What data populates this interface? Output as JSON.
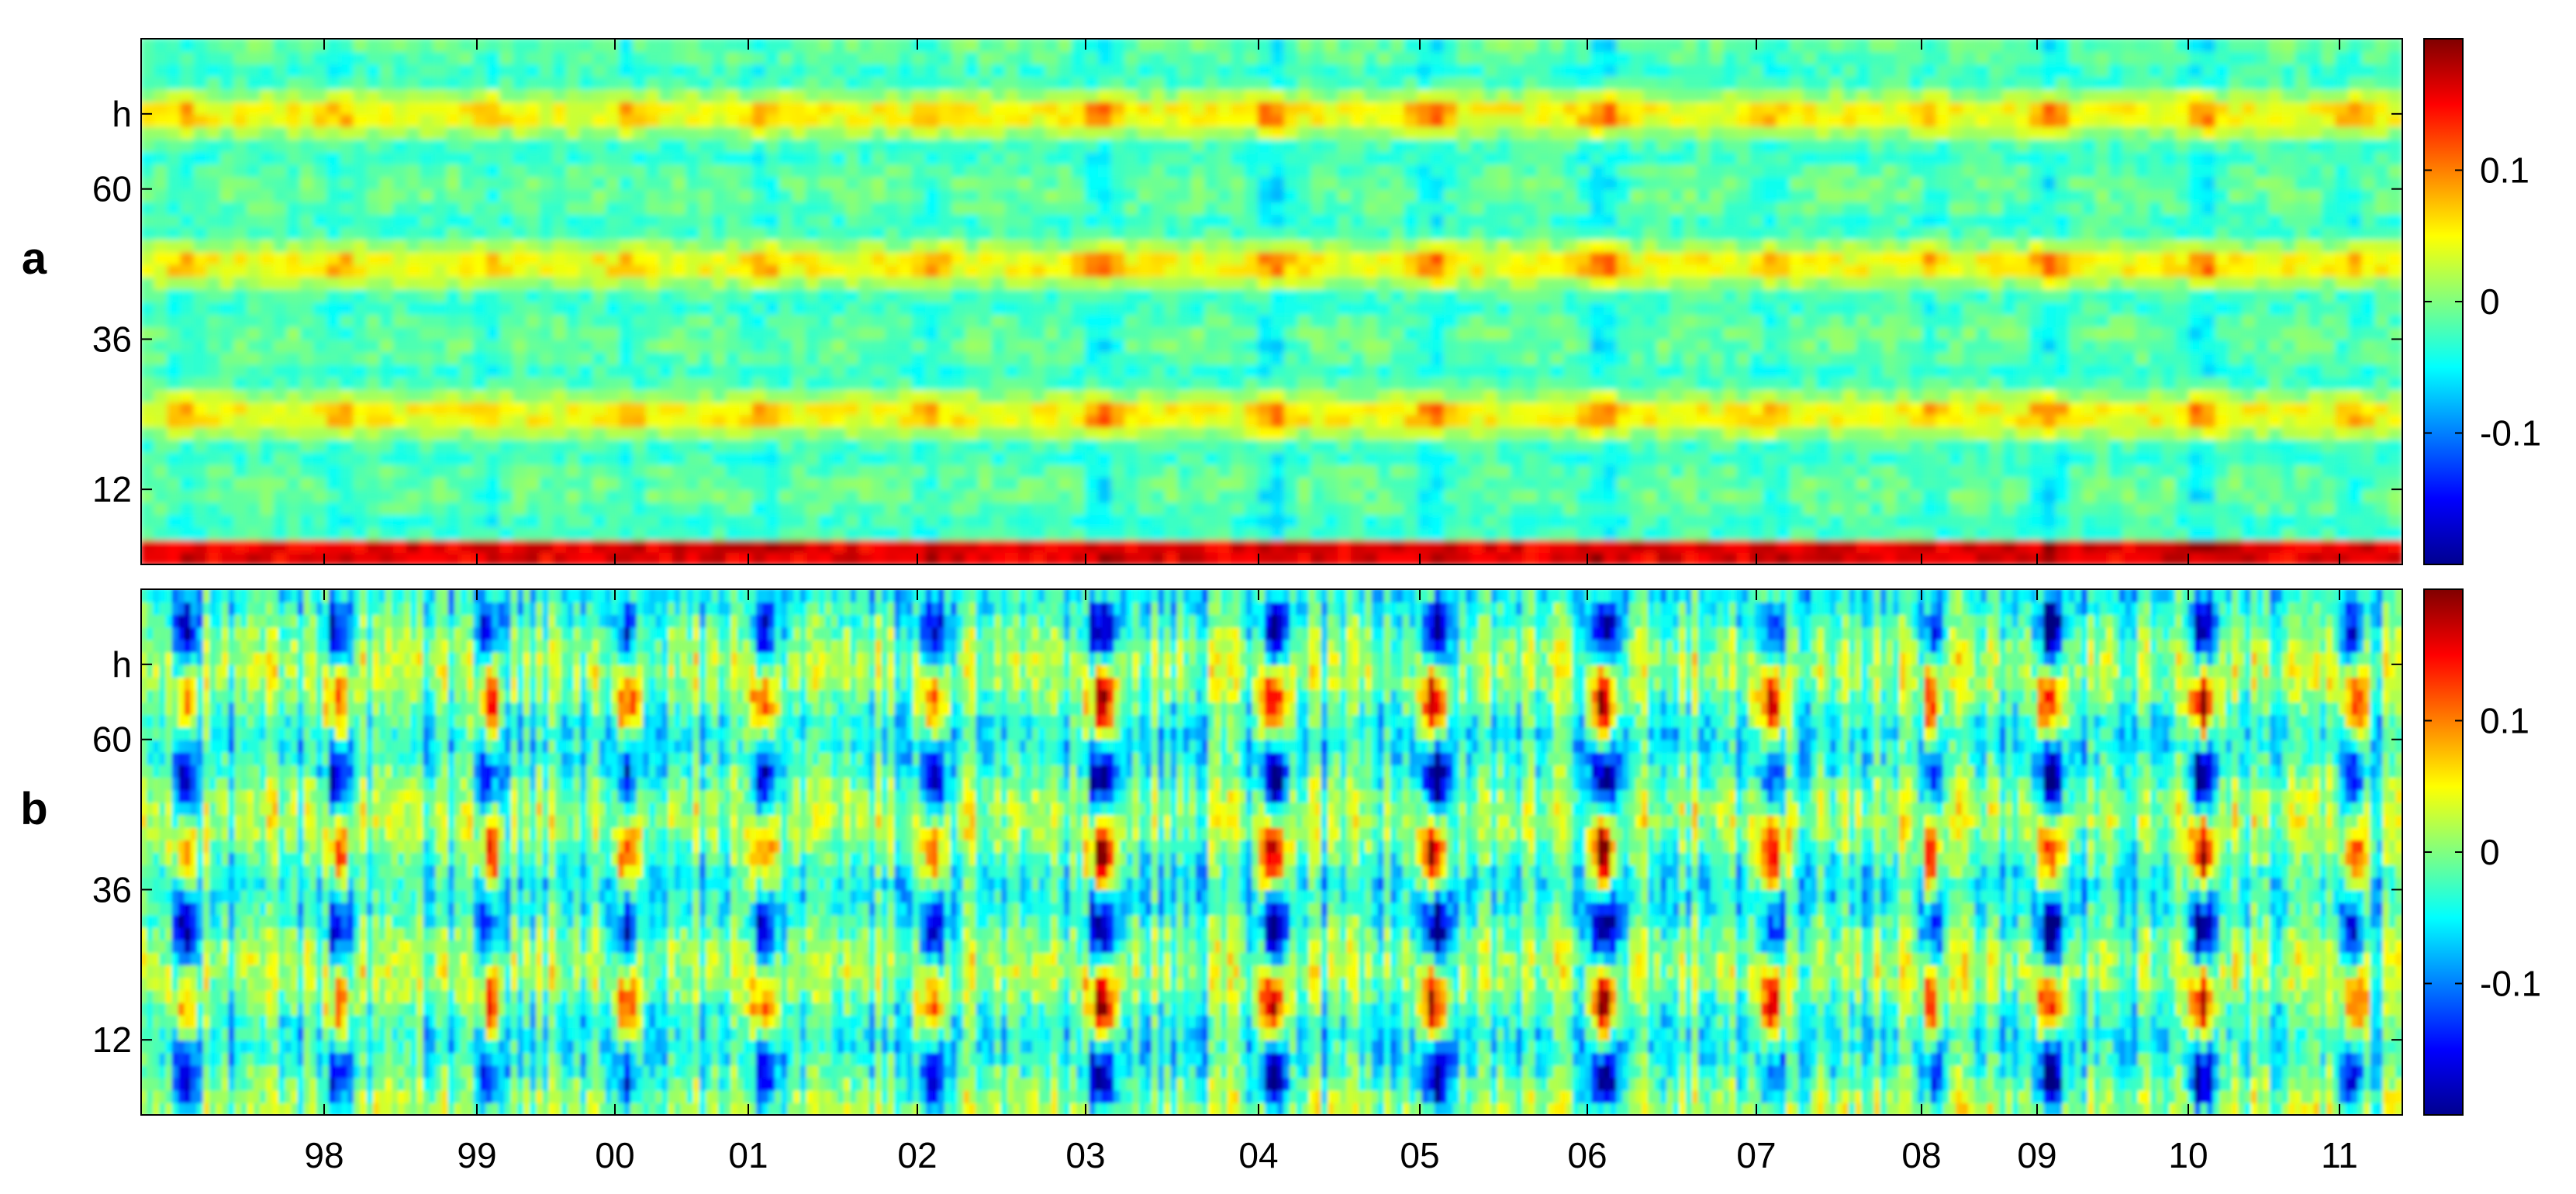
{
  "chart_data": [
    {
      "type": "heatmap",
      "panel_label": "a",
      "x_tick_labels": [
        "98",
        "99",
        "00",
        "01",
        "02",
        "03",
        "04",
        "05",
        "06",
        "07",
        "08",
        "09",
        "10",
        "11"
      ],
      "y_tick_labels": [
        "12",
        "36",
        "60",
        "h"
      ],
      "y_tick_values": [
        12,
        36,
        60,
        72
      ],
      "y_range": [
        0,
        84
      ],
      "colormap": "jet",
      "color_range": [
        -0.2,
        0.2
      ],
      "colorbar_ticks": [
        "0.1",
        "0",
        "-0.1"
      ],
      "colorbar_tick_values": [
        0.1,
        0,
        -0.1
      ],
      "summary": {
        "low_lag_band": 0.16,
        "lag_12_band": -0.12,
        "lag_24_band": 0.09,
        "lag_36_band": -0.1,
        "lag_48_band": 0.06,
        "lag_60_band": -0.1,
        "lag_72_band": 0.07
      }
    },
    {
      "type": "heatmap",
      "panel_label": "b",
      "x_tick_labels": [
        "98",
        "99",
        "00",
        "01",
        "02",
        "03",
        "04",
        "05",
        "06",
        "07",
        "08",
        "09",
        "10",
        "11"
      ],
      "y_tick_labels": [
        "12",
        "36",
        "60",
        "h"
      ],
      "y_tick_values": [
        12,
        36,
        60,
        72
      ],
      "y_range": [
        0,
        84
      ],
      "colormap": "jet",
      "color_range": [
        -0.2,
        0.2
      ],
      "colorbar_ticks": [
        "0.1",
        "0",
        "-0.1"
      ],
      "colorbar_tick_values": [
        0.1,
        0,
        -0.1
      ],
      "summary": {
        "lag_18_band": 0.15,
        "lag_42_band": 0.13,
        "lag_66_band": 0.13,
        "lag_6_band": -0.13,
        "lag_30_band": -0.1,
        "lag_54_band": -0.09
      }
    }
  ]
}
